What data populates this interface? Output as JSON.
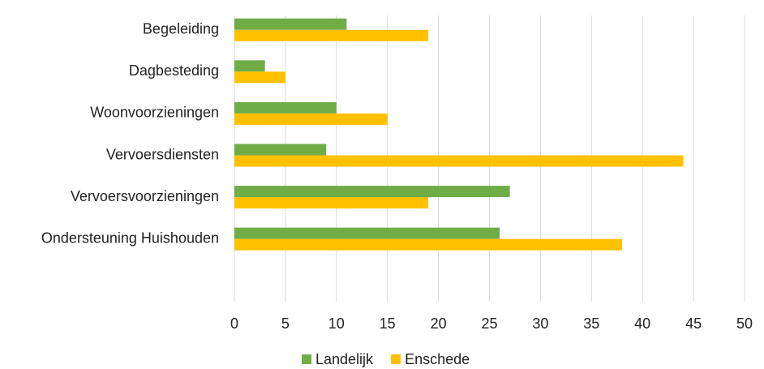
{
  "chart_data": {
    "type": "bar",
    "orientation": "horizontal",
    "categories": [
      "Begeleiding",
      "Dagbesteding",
      "Woonvoorzieningen",
      "Vervoersdiensten",
      "Vervoersvoorzieningen",
      "Ondersteuning Huishouden",
      null
    ],
    "series": [
      {
        "name": "Landelijk",
        "color": "#70ad47",
        "values": [
          11,
          3,
          10,
          9,
          27,
          26,
          null
        ]
      },
      {
        "name": "Enschede",
        "color": "#ffc000",
        "values": [
          19,
          5,
          15,
          44,
          19,
          38,
          null
        ]
      }
    ],
    "xlim": [
      0,
      50
    ],
    "xticks": [
      0,
      5,
      10,
      15,
      20,
      25,
      30,
      35,
      40,
      45,
      50
    ],
    "grid": true,
    "legend": "bottom"
  }
}
